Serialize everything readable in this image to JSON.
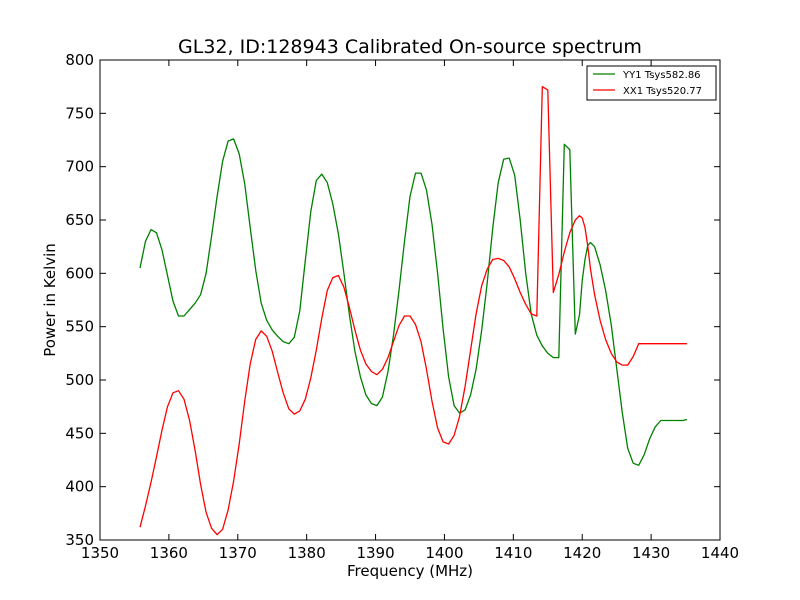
{
  "chart_data": {
    "type": "line",
    "title": "GL32, ID:128943 Calibrated On-source spectrum",
    "xlabel": "Frequency (MHz)",
    "ylabel": "Power in Kelvin",
    "xlim": [
      1350,
      1440
    ],
    "ylim": [
      350,
      800
    ],
    "xticks": [
      "1350",
      "1360",
      "1370",
      "1380",
      "1390",
      "1400",
      "1410",
      "1420",
      "1430",
      "1440"
    ],
    "yticks": [
      "350",
      "400",
      "450",
      "500",
      "550",
      "600",
      "650",
      "700",
      "750",
      "800"
    ],
    "grid": false,
    "legend_position": "top-right",
    "series": [
      {
        "name": "YY1 Tsys582.86",
        "color": "#008000",
        "x": [
          1355.8,
          1356.6,
          1357.4,
          1358.2,
          1359.0,
          1359.8,
          1360.6,
          1361.4,
          1362.2,
          1363.0,
          1363.8,
          1364.6,
          1365.4,
          1366.2,
          1367.0,
          1367.8,
          1368.6,
          1369.4,
          1370.2,
          1371.0,
          1371.8,
          1372.6,
          1373.4,
          1374.2,
          1375.0,
          1375.8,
          1376.6,
          1377.4,
          1378.2,
          1379.0,
          1379.8,
          1380.6,
          1381.4,
          1382.2,
          1383.0,
          1383.8,
          1384.6,
          1385.4,
          1386.2,
          1387.0,
          1387.8,
          1388.6,
          1389.4,
          1390.2,
          1391.0,
          1391.8,
          1392.6,
          1393.4,
          1394.2,
          1395.0,
          1395.8,
          1396.6,
          1397.4,
          1398.2,
          1399.0,
          1399.8,
          1400.6,
          1401.4,
          1402.2,
          1403.0,
          1403.8,
          1404.6,
          1405.4,
          1406.2,
          1407.0,
          1407.8,
          1408.6,
          1409.4,
          1410.2,
          1411.0,
          1411.8,
          1412.6,
          1413.4,
          1414.2,
          1415.0,
          1415.8,
          1416.6,
          1417.4,
          1418.2,
          1419.0,
          1419.6,
          1420.0,
          1420.4,
          1420.8,
          1421.2,
          1421.8,
          1422.6,
          1423.4,
          1424.2,
          1425.0,
          1425.8,
          1426.6,
          1427.4,
          1428.2,
          1429.0,
          1429.8,
          1430.6,
          1431.4,
          1432.2,
          1433.0,
          1433.8,
          1434.6,
          1435.2
        ],
        "values": [
          605,
          630,
          641,
          638,
          622,
          598,
          574,
          560,
          560,
          566,
          572,
          580,
          600,
          635,
          672,
          705,
          724,
          726,
          712,
          684,
          643,
          603,
          572,
          556,
          547,
          541,
          536,
          534,
          540,
          565,
          612,
          658,
          687,
          693,
          685,
          665,
          637,
          600,
          561,
          527,
          503,
          486,
          478,
          476,
          484,
          508,
          542,
          584,
          630,
          672,
          694,
          694,
          678,
          646,
          600,
          548,
          503,
          476,
          469,
          472,
          486,
          510,
          546,
          591,
          642,
          685,
          707,
          708,
          692,
          650,
          600,
          562,
          542,
          532,
          525,
          521,
          521,
          721,
          716,
          543,
          561,
          593,
          613,
          626,
          629,
          625,
          608,
          584,
          552,
          511,
          470,
          436,
          422,
          420,
          430,
          445,
          456,
          462,
          462,
          462,
          462,
          462,
          463
        ]
      },
      {
        "name": "XX1 Tsys520.77",
        "color": "#ff0000",
        "x": [
          1355.8,
          1356.6,
          1357.4,
          1358.2,
          1359.0,
          1359.8,
          1360.6,
          1361.4,
          1362.2,
          1363.0,
          1363.8,
          1364.6,
          1365.4,
          1366.2,
          1367.0,
          1367.8,
          1368.6,
          1369.4,
          1370.2,
          1371.0,
          1371.8,
          1372.6,
          1373.4,
          1374.2,
          1375.0,
          1375.8,
          1376.6,
          1377.4,
          1378.2,
          1379.0,
          1379.8,
          1380.6,
          1381.4,
          1382.2,
          1383.0,
          1383.8,
          1384.6,
          1385.4,
          1386.2,
          1387.0,
          1387.8,
          1388.6,
          1389.4,
          1390.2,
          1391.0,
          1391.8,
          1392.6,
          1393.4,
          1394.2,
          1395.0,
          1395.8,
          1396.6,
          1397.4,
          1398.2,
          1399.0,
          1399.8,
          1400.6,
          1401.4,
          1402.2,
          1403.0,
          1403.8,
          1404.6,
          1405.4,
          1406.2,
          1407.0,
          1407.8,
          1408.6,
          1409.4,
          1410.2,
          1411.0,
          1411.8,
          1412.6,
          1413.4,
          1414.2,
          1415.0,
          1415.8,
          1416.6,
          1417.4,
          1418.2,
          1419.0,
          1419.6,
          1420.0,
          1420.4,
          1420.8,
          1421.2,
          1421.8,
          1422.6,
          1423.4,
          1424.2,
          1425.0,
          1425.8,
          1426.6,
          1427.4,
          1428.2,
          1429.0,
          1429.8,
          1430.6,
          1431.4,
          1432.2,
          1433.0,
          1433.8,
          1434.6,
          1435.2
        ],
        "values": [
          362,
          382,
          404,
          428,
          453,
          475,
          488,
          490,
          482,
          462,
          434,
          402,
          376,
          361,
          355,
          360,
          378,
          405,
          440,
          480,
          515,
          538,
          546,
          541,
          527,
          507,
          488,
          473,
          468,
          471,
          482,
          502,
          528,
          558,
          584,
          596,
          598,
          587,
          568,
          547,
          528,
          515,
          508,
          505,
          510,
          521,
          536,
          551,
          560,
          560,
          552,
          536,
          510,
          480,
          455,
          442,
          440,
          448,
          466,
          494,
          528,
          562,
          588,
          604,
          613,
          614,
          612,
          606,
          595,
          582,
          571,
          562,
          560,
          775,
          772,
          582,
          599,
          620,
          638,
          650,
          654,
          652,
          643,
          626,
          604,
          580,
          556,
          538,
          525,
          517,
          514,
          514,
          522,
          534,
          534,
          534,
          534,
          534,
          534,
          534,
          534,
          534,
          534
        ]
      }
    ]
  }
}
